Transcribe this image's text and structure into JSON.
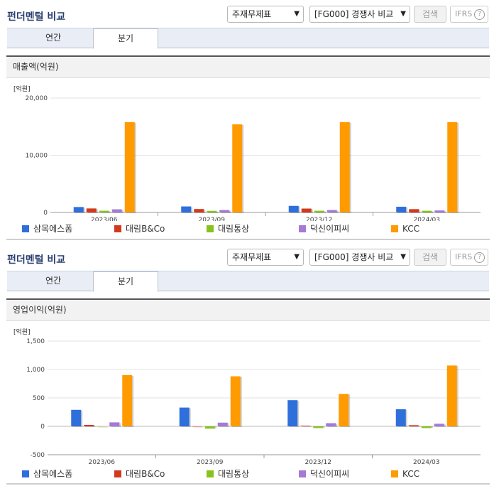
{
  "header": {
    "title": "펀더멘털 비교",
    "select_metric": "주재무제표",
    "select_group": "[FG000] 경쟁사 비교",
    "search_button": "검색",
    "ifrs_button": "IFRS",
    "help_icon_glyph": "?"
  },
  "tabs": [
    {
      "label": "연간",
      "active": false
    },
    {
      "label": "분기",
      "active": true
    }
  ],
  "colors": {
    "삼목에스폼": "#2f6fdb",
    "대림B&Co": "#d2391f",
    "대림통상": "#88c21f",
    "덕신이피씨": "#a57ad6",
    "KCC": "#ff9b00"
  },
  "chart_data": [
    {
      "type": "bar",
      "title": "매출액(억원)",
      "unit_label": "[억원]",
      "categories": [
        "2023/06",
        "2023/09",
        "2023/12",
        "2024/03"
      ],
      "ylim": [
        0,
        20000
      ],
      "yticks": [
        0,
        10000,
        20000
      ],
      "ytick_labels": [
        "0",
        "10,000",
        "20,000"
      ],
      "grid": true,
      "legend": "bottom",
      "series": [
        {
          "name": "삼목에스폼",
          "values": [
            950,
            1050,
            1150,
            1000
          ]
        },
        {
          "name": "대림B&Co",
          "values": [
            700,
            600,
            680,
            580
          ]
        },
        {
          "name": "대림통상",
          "values": [
            300,
            280,
            300,
            300
          ]
        },
        {
          "name": "덕신이피씨",
          "values": [
            550,
            420,
            420,
            350
          ]
        },
        {
          "name": "KCC",
          "values": [
            15800,
            15400,
            15800,
            15800
          ]
        }
      ]
    },
    {
      "type": "bar",
      "title": "영업이익(억원)",
      "unit_label": "[억원]",
      "categories": [
        "2023/06",
        "2023/09",
        "2023/12",
        "2024/03"
      ],
      "ylim": [
        -500,
        1500
      ],
      "yticks": [
        -500,
        0,
        500,
        1000,
        1500
      ],
      "ytick_labels": [
        "-500",
        "0",
        "500",
        "1,000",
        "1,500"
      ],
      "grid": true,
      "legend": "bottom",
      "series": [
        {
          "name": "삼목에스폼",
          "values": [
            290,
            330,
            460,
            300
          ]
        },
        {
          "name": "대림B&Co",
          "values": [
            25,
            0,
            10,
            20
          ]
        },
        {
          "name": "대림통상",
          "values": [
            0,
            -40,
            -30,
            -30
          ]
        },
        {
          "name": "덕신이피씨",
          "values": [
            70,
            65,
            55,
            45
          ]
        },
        {
          "name": "KCC",
          "values": [
            900,
            880,
            570,
            1070
          ]
        }
      ]
    }
  ]
}
